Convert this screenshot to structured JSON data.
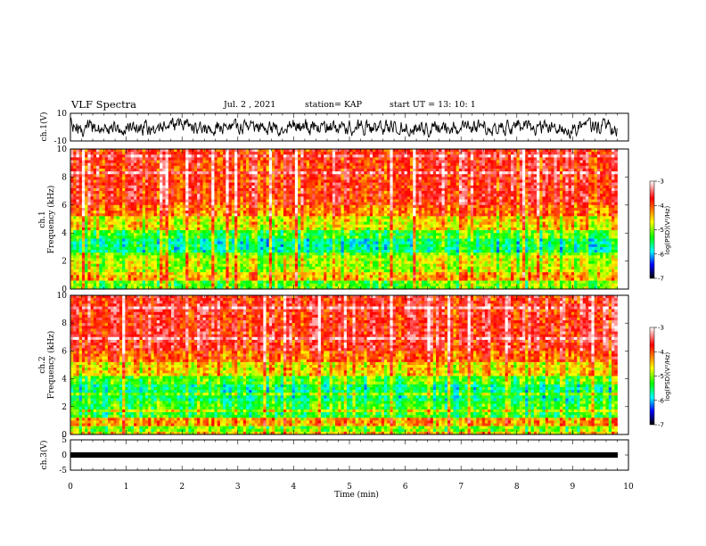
{
  "header": {
    "title": "VLF Spectra",
    "date": "Jul. 2 , 2021",
    "station": "station= KAP",
    "start": "start UT = 13: 10: 1"
  },
  "chart_data": [
    {
      "type": "line",
      "name": "ch1-waveform",
      "ylabel": "ch.1(V)",
      "ylim": [
        -10,
        10
      ],
      "yticks": [
        "10",
        "-10"
      ],
      "xlim": [
        0,
        10
      ]
    },
    {
      "type": "heatmap",
      "name": "ch1-spectrogram",
      "ylabel": "ch.1 Frequency (kHz)",
      "ylim": [
        0,
        10
      ],
      "yticks": [
        "0",
        "2",
        "4",
        "6",
        "8",
        "10"
      ],
      "xlim": [
        0,
        9.8
      ],
      "colorbar": {
        "label": "log(PSD)(V²/Hz)",
        "range": [
          -7,
          -3
        ],
        "ticks": [
          "-3",
          "-4",
          "-5",
          "-6",
          "-7"
        ]
      },
      "colormap": [
        "#ffffff",
        "#ff0000",
        "#ffff00",
        "#00ff00",
        "#00ffff",
        "#0000ff",
        "#000000"
      ]
    },
    {
      "type": "heatmap",
      "name": "ch2-spectrogram",
      "ylabel": "ch.2 Frequency (kHz)",
      "ylim": [
        0,
        10
      ],
      "yticks": [
        "0",
        "2",
        "4",
        "6",
        "8",
        "10"
      ],
      "xlim": [
        0,
        9.8
      ],
      "colorbar": {
        "label": "log(PSD)(V²/Hz)",
        "range": [
          -7,
          -3
        ],
        "ticks": [
          "-3",
          "-4",
          "-5",
          "-6",
          "-7"
        ]
      },
      "colormap": [
        "#ffffff",
        "#ff0000",
        "#ffff00",
        "#00ff00",
        "#00ffff",
        "#0000ff",
        "#000000"
      ]
    },
    {
      "type": "line",
      "name": "ch3-waveform",
      "ylabel": "ch.3(V)",
      "ylim": [
        -5,
        5
      ],
      "yticks": [
        "5",
        "0",
        "-5"
      ],
      "xlim": [
        0,
        10
      ]
    }
  ],
  "xaxis": {
    "label": "Time (min)",
    "ticks": [
      "0",
      "1",
      "2",
      "3",
      "4",
      "5",
      "6",
      "7",
      "8",
      "9",
      "10"
    ]
  }
}
